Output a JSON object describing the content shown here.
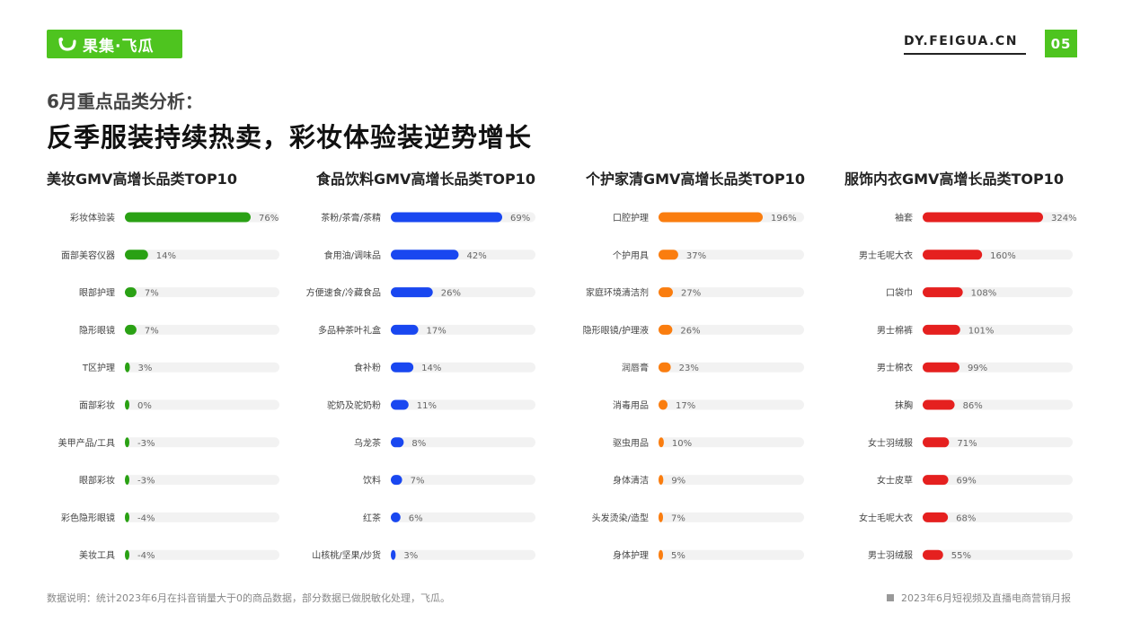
{
  "header": {
    "logo_text": "果集·飞瓜",
    "site": "DY.FEIGUA.CN",
    "page_number": "05"
  },
  "subtitle": "6月重点品类分析：",
  "headline": "反季服装持续热卖，彩妆体验装逆势增长",
  "footer": {
    "note": "数据说明：统计2023年6月在抖音销量大于0的商品数据，部分数据已做脱敏化处理，飞瓜。",
    "report": "2023年6月短视频及直播电商营销月报"
  },
  "colors": {
    "accent": "#4ec41f",
    "track": "#f2f2f2",
    "beauty": "#2aa114",
    "food": "#1947f0",
    "care": "#fa7d0f",
    "apparel": "#e5201f"
  },
  "chart_data": [
    {
      "type": "bar",
      "title": "美妆GMV高增长品类TOP10",
      "color_key": "beauty",
      "categories": [
        "彩妆体验装",
        "面部美容仪器",
        "眼部护理",
        "隐形眼镜",
        "T区护理",
        "面部彩妆",
        "美甲产品/工具",
        "眼部彩妆",
        "彩色隐形眼镜",
        "美妆工具"
      ],
      "values": [
        76,
        14,
        7,
        7,
        3,
        0,
        -3,
        -3,
        -4,
        -4
      ],
      "labels": [
        "76%",
        "14%",
        "7%",
        "7%",
        "3%",
        "0%",
        "-3%",
        "-3%",
        "-4%",
        "-4%"
      ],
      "max": 76
    },
    {
      "type": "bar",
      "title": "食品饮料GMV高增长品类TOP10",
      "color_key": "food",
      "categories": [
        "茶粉/茶膏/茶精",
        "食用油/调味品",
        "方便速食/冷藏食品",
        "多品种茶叶礼盒",
        "食补粉",
        "驼奶及驼奶粉",
        "乌龙茶",
        "饮料",
        "红茶",
        "山核桃/坚果/炒货"
      ],
      "values": [
        69,
        42,
        26,
        17,
        14,
        11,
        8,
        7,
        6,
        3
      ],
      "labels": [
        "69%",
        "42%",
        "26%",
        "17%",
        "14%",
        "11%",
        "8%",
        "7%",
        "6%",
        "3%"
      ],
      "max": 69
    },
    {
      "type": "bar",
      "title": "个护家清GMV高增长品类TOP10",
      "color_key": "care",
      "categories": [
        "口腔护理",
        "个护用具",
        "家庭环境清洁剂",
        "隐形眼镜/护理液",
        "润唇膏",
        "消毒用品",
        "驱虫用品",
        "身体清洁",
        "头发烫染/造型",
        "身体护理"
      ],
      "values": [
        196,
        37,
        27,
        26,
        23,
        17,
        10,
        9,
        7,
        5
      ],
      "labels": [
        "196%",
        "37%",
        "27%",
        "26%",
        "23%",
        "17%",
        "10%",
        "9%",
        "7%",
        "5%"
      ],
      "max": 196
    },
    {
      "type": "bar",
      "title": "服饰内衣GMV高增长品类TOP10",
      "color_key": "apparel",
      "categories": [
        "袖套",
        "男士毛呢大衣",
        "口袋巾",
        "男士棉裤",
        "男士棉衣",
        "抹胸",
        "女士羽绒服",
        "女士皮草",
        "女士毛呢大衣",
        "男士羽绒服"
      ],
      "values": [
        324,
        160,
        108,
        101,
        99,
        86,
        71,
        69,
        68,
        55
      ],
      "labels": [
        "324%",
        "160%",
        "108%",
        "101%",
        "99%",
        "86%",
        "71%",
        "69%",
        "68%",
        "55%"
      ],
      "max": 324
    }
  ]
}
